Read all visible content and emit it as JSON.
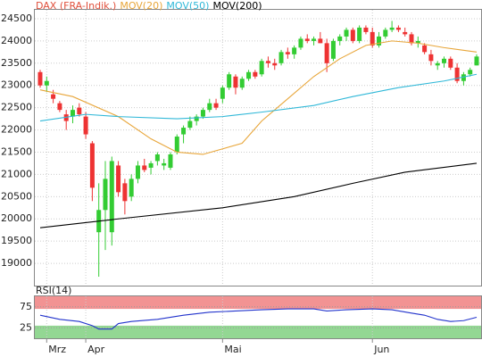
{
  "chart_data": [
    {
      "type": "candlestick",
      "categories": [
        null,
        "Mrz",
        null,
        null,
        null,
        null,
        null,
        "Apr",
        null,
        null,
        null,
        null,
        null,
        null,
        null,
        null,
        null,
        null,
        null,
        null,
        null,
        null,
        null,
        null,
        null,
        null,
        null,
        null,
        "Mai",
        null,
        null,
        null,
        null,
        null,
        null,
        null,
        null,
        null,
        null,
        null,
        null,
        null,
        null,
        null,
        null,
        null,
        null,
        null,
        null,
        null,
        null,
        "Jun",
        null,
        null,
        null,
        null,
        null,
        null,
        null,
        null,
        null,
        null,
        null,
        null,
        null,
        null,
        null,
        null
      ],
      "series": [
        {
          "name": "DAX (FRA-Indik.)",
          "color": "#e0503c",
          "up_color": "#33cc33",
          "down_color": "#ee3333",
          "open": [
            23300,
            23000,
            22800,
            22600,
            22350,
            22300,
            22500,
            22300,
            21700,
            19700,
            20200,
            19700,
            21200,
            20800,
            20500,
            20900,
            21200,
            21150,
            21300,
            21200,
            21150,
            21500,
            21900,
            22050,
            22200,
            22300,
            22450,
            22600,
            22700,
            22950,
            23200,
            22950,
            23150,
            23300,
            23250,
            23550,
            23500,
            23500,
            23750,
            23700,
            23850,
            24050,
            24000,
            24050,
            23950,
            23600,
            24000,
            24100,
            24250,
            24000,
            24300,
            24200,
            23900,
            24100,
            24250,
            24300,
            24200,
            24150,
            23950,
            23900,
            23700,
            23450,
            23500,
            23600,
            23400,
            23100,
            23250,
            23450
          ],
          "high": [
            23350,
            23200,
            22900,
            22650,
            22450,
            22550,
            22600,
            22400,
            21750,
            20800,
            21300,
            21400,
            21300,
            20900,
            21000,
            21300,
            21350,
            21300,
            21500,
            21350,
            21500,
            21900,
            22100,
            22300,
            22350,
            22500,
            22700,
            22700,
            23000,
            23300,
            23250,
            23200,
            23350,
            23350,
            23600,
            23650,
            23600,
            23800,
            23850,
            23900,
            24100,
            24150,
            24100,
            24200,
            24050,
            24050,
            24150,
            24300,
            24300,
            24350,
            24350,
            24300,
            24200,
            24300,
            24450,
            24350,
            24300,
            24200,
            24100,
            23950,
            23800,
            23550,
            23650,
            23650,
            23500,
            23300,
            23400,
            23700
          ],
          "low": [
            22950,
            22850,
            22600,
            22400,
            22000,
            22150,
            22300,
            21800,
            20400,
            18700,
            19300,
            19400,
            20500,
            20100,
            20400,
            20800,
            21050,
            21000,
            21200,
            21100,
            21100,
            21450,
            21700,
            22000,
            22100,
            22250,
            22400,
            22450,
            22600,
            22900,
            22800,
            22900,
            23100,
            23150,
            23200,
            23400,
            23350,
            23450,
            23600,
            23600,
            23800,
            23950,
            23900,
            23950,
            23300,
            23550,
            23900,
            24000,
            23950,
            23950,
            24150,
            23850,
            23850,
            24050,
            24200,
            24200,
            24100,
            23900,
            23850,
            23700,
            23450,
            23350,
            23400,
            23350,
            23050,
            23000,
            23200,
            23450
          ],
          "close": [
            23000,
            23100,
            22700,
            22450,
            22200,
            22450,
            22350,
            21900,
            20700,
            20200,
            20900,
            21300,
            20600,
            20400,
            20900,
            21200,
            21100,
            21250,
            21450,
            21250,
            21450,
            21850,
            22050,
            22200,
            22300,
            22450,
            22600,
            22500,
            22950,
            23250,
            22950,
            23150,
            23300,
            23200,
            23550,
            23500,
            23450,
            23750,
            23700,
            23850,
            24050,
            24000,
            24050,
            23950,
            23500,
            24000,
            24100,
            24250,
            24000,
            24300,
            24200,
            23900,
            24100,
            24250,
            24300,
            24250,
            24150,
            23950,
            24000,
            23750,
            23550,
            23500,
            23600,
            23400,
            23100,
            23250,
            23350,
            23650
          ]
        },
        {
          "name": "MOV(20)",
          "color": "#e8a63a",
          "x": [
            0,
            5,
            12,
            17,
            21,
            25,
            31,
            34,
            38,
            42,
            46,
            50,
            54,
            58,
            62,
            67
          ],
          "values": [
            22900,
            22750,
            22300,
            21800,
            21500,
            21450,
            21700,
            22200,
            22700,
            23200,
            23600,
            23900,
            24000,
            23950,
            23850,
            23750
          ]
        },
        {
          "name": "MOV(50)",
          "color": "#30b8d8",
          "x": [
            0,
            7,
            12,
            21,
            28,
            34,
            42,
            48,
            55,
            62,
            67
          ],
          "values": [
            22200,
            22350,
            22300,
            22250,
            22300,
            22400,
            22550,
            22750,
            22950,
            23100,
            23250
          ]
        },
        {
          "name": "MOV(200)",
          "color": "#000000",
          "x": [
            0,
            12,
            28,
            39,
            48,
            56,
            67
          ],
          "values": [
            19800,
            20000,
            20250,
            20500,
            20800,
            21050,
            21250
          ]
        }
      ],
      "ylim": [
        18500,
        24700
      ],
      "yticks": [
        19000,
        19500,
        20000,
        20500,
        21000,
        21500,
        22000,
        22500,
        23000,
        23500,
        24000,
        24500
      ],
      "grid": true
    },
    {
      "type": "line",
      "title": "RSI(14)",
      "series": [
        {
          "color": "#2233cc",
          "x": [
            0,
            3,
            6,
            8,
            9,
            11,
            12,
            14,
            18,
            22,
            26,
            30,
            34,
            38,
            42,
            44,
            47,
            51,
            54,
            57,
            59,
            61,
            63,
            65,
            67
          ],
          "values": [
            55,
            45,
            40,
            30,
            22,
            22,
            35,
            40,
            45,
            55,
            62,
            65,
            68,
            70,
            70,
            65,
            68,
            70,
            68,
            60,
            55,
            45,
            40,
            42,
            50
          ]
        }
      ],
      "bands": [
        {
          "from": 70,
          "to": 100,
          "color": "#f08080"
        },
        {
          "from": 0,
          "to": 30,
          "color": "#80d080"
        }
      ],
      "ylim": [
        0,
        100
      ],
      "yticks": [
        25,
        75
      ]
    }
  ]
}
